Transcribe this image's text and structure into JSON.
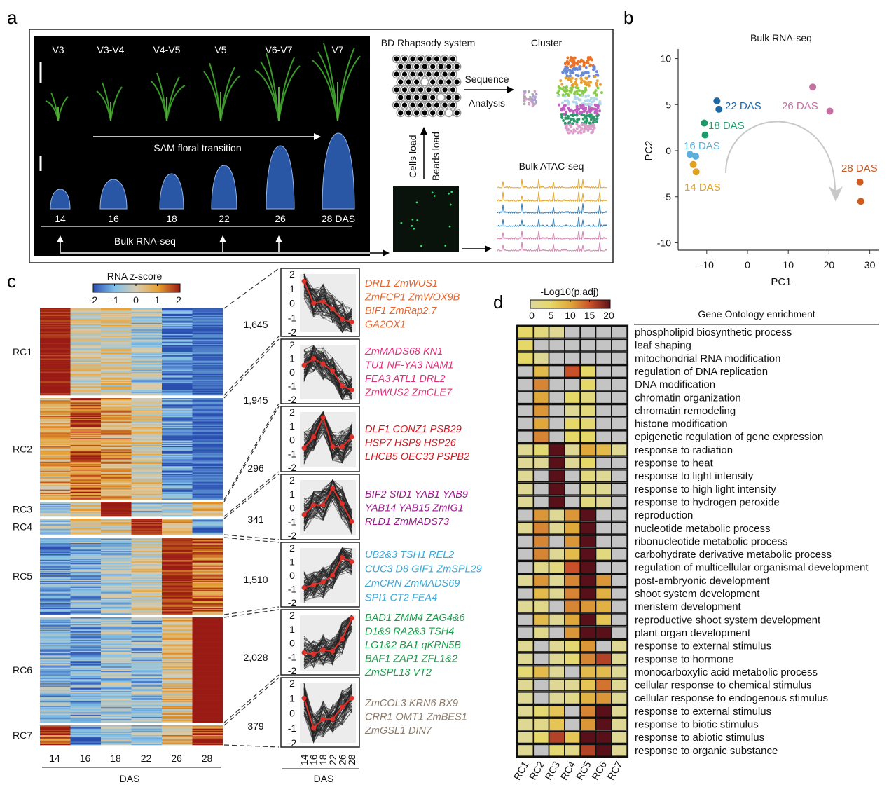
{
  "panel_labels": {
    "a": "a",
    "b": "b",
    "c": "c",
    "d": "d"
  },
  "panel_a": {
    "stages": [
      "V3",
      "V3-V4",
      "V4-V5",
      "V5",
      "V6-V7",
      "V7"
    ],
    "sam_floral_transition": "SAM floral transition",
    "days": [
      "14",
      "16",
      "18",
      "22",
      "26",
      "28  DAS"
    ],
    "bulk_rna_seq": "Bulk RNA-seq",
    "bd_rhapsody": "BD Rhapsody system",
    "cluster": "Cluster",
    "sequence": "Sequence",
    "analysis": "Analysis",
    "cells_load": "Cells load",
    "beads_load": "Beads load",
    "bulk_atac_seq": "Bulk ATAC-seq",
    "atac_track_colors": [
      "#e3a427",
      "#e3a427",
      "#2c7bb6",
      "#2c7bb6",
      "#d47fae",
      "#d47fae"
    ]
  },
  "chart_data": [
    {
      "id": "pca",
      "type": "scatter",
      "title": "Bulk RNA-seq",
      "xlabel": "PC1",
      "ylabel": "PC2",
      "xlim": [
        -17,
        32
      ],
      "ylim": [
        -11,
        11
      ],
      "xticks": [
        "-10",
        "0",
        "10",
        "20",
        "30"
      ],
      "yticks": [
        "10",
        "5",
        "0",
        "-5",
        "-10"
      ],
      "series": [
        {
          "name": "14 DAS",
          "color": "#e0a020",
          "points": [
            [
              -13.3,
              -1.5
            ],
            [
              -12.6,
              -2.3
            ]
          ]
        },
        {
          "name": "16 DAS",
          "color": "#5aaedc",
          "points": [
            [
              -14.1,
              -0.4
            ],
            [
              -12.7,
              -0.6
            ]
          ]
        },
        {
          "name": "18 DAS",
          "color": "#1f9a6a",
          "points": [
            [
              -10.6,
              3.0
            ],
            [
              -10.4,
              1.7
            ]
          ]
        },
        {
          "name": "22 DAS",
          "color": "#1f68a8",
          "points": [
            [
              -7.5,
              5.4
            ],
            [
              -7.0,
              4.5
            ]
          ]
        },
        {
          "name": "26 DAS",
          "color": "#c0739f",
          "points": [
            [
              16.0,
              6.9
            ],
            [
              20.2,
              4.3
            ]
          ]
        },
        {
          "name": "28 DAS",
          "color": "#cf5a1c",
          "points": [
            [
              27.6,
              -3.4
            ],
            [
              27.8,
              -5.5
            ]
          ]
        }
      ]
    },
    {
      "id": "rna_heatmap",
      "type": "heatmap",
      "colorbar_title": "RNA z-score",
      "colorbar_ticks": [
        "-2",
        "-1",
        "0",
        "1",
        "2"
      ],
      "colorbar_colors": [
        "#2a4fb0",
        "#80c0e8",
        "#d8ccb0",
        "#e8a030",
        "#9a1a14"
      ],
      "columns": [
        "14",
        "16",
        "18",
        "22",
        "26",
        "28"
      ],
      "xlabel": "DAS",
      "clusters": [
        {
          "name": "RC1",
          "count": "1,645",
          "genes": 1645
        },
        {
          "name": "RC2",
          "count": "1,945",
          "genes": 1945
        },
        {
          "name": "RC3",
          "count": "296",
          "genes": 296
        },
        {
          "name": "RC4",
          "count": "341",
          "genes": 341
        },
        {
          "name": "RC5",
          "count": "1,510",
          "genes": 1510
        },
        {
          "name": "RC6",
          "count": "2,028",
          "genes": 2028
        },
        {
          "name": "RC7",
          "count": "379",
          "genes": 379
        }
      ]
    },
    {
      "id": "cluster_profiles",
      "type": "line",
      "x": [
        "14",
        "16",
        "18",
        "22",
        "26",
        "28"
      ],
      "xlabel": "DAS",
      "ylim": [
        -2,
        2
      ],
      "yticks": [
        "2",
        "1",
        "0",
        "-1",
        "-2"
      ],
      "mean_line_color": "#e0302a",
      "series": [
        {
          "cluster": "RC1",
          "values": [
            1.5,
            0.0,
            0.1,
            -0.4,
            -1.1,
            -1.3
          ],
          "gene_color": "#e8642a",
          "genes": [
            "DRL1 ZmWUS1",
            "ZmFCP1 ZmWOX9B",
            "BIF1 ZmRap2.7",
            "GA2OX1"
          ]
        },
        {
          "cluster": "RC2",
          "values": [
            0.5,
            1.0,
            0.6,
            0.1,
            -1.0,
            -1.3
          ],
          "gene_color": "#e0307a",
          "genes": [
            "ZmMADS68 KN1",
            "TU1 NF-YA3 NAM1",
            "FEA3 ATL1 DRL2",
            "ZmWUS2 ZmCLE7"
          ]
        },
        {
          "cluster": "RC3",
          "values": [
            -0.6,
            0.2,
            1.6,
            -0.5,
            -0.5,
            0.2
          ],
          "gene_color": "#d8141e",
          "genes": [
            "DLF1 CONZ1 PSB29",
            "HSP7 HSP9  HSP26",
            "LHCB5 OEC33 PSPB2"
          ]
        },
        {
          "cluster": "RC4",
          "values": [
            -0.5,
            0.2,
            0.2,
            1.4,
            0.3,
            -1.0
          ],
          "gene_color": "#9a1a8a",
          "genes": [
            "BIF2 SID1 YAB1 YAB9",
            "YAB14 YAB15  ZmIG1",
            "RLD1 ZmMADS73"
          ]
        },
        {
          "cluster": "RC5",
          "values": [
            -0.9,
            -0.7,
            -0.5,
            0.0,
            1.3,
            1.0
          ],
          "gene_color": "#3aa8d8",
          "genes": [
            "UB2&3 TSH1 REL2",
            "CUC3 D8 GIF1 ZmSPL29",
            "ZmCRN ZmMADS69",
            "SPI1 CT2 FEA4"
          ]
        },
        {
          "cluster": "RC6",
          "values": [
            -0.7,
            -0.8,
            -0.5,
            -0.6,
            0.3,
            1.8
          ],
          "gene_color": "#1a9a4a",
          "genes": [
            "BAD1 ZMM4 ZAG4&6",
            "D1&9 RA2&3 TSH4",
            "LG1&2 BA1 qKRN5B",
            "BAF1 ZAP1 ZFL1&2",
            "ZmSPL13 VT2"
          ]
        },
        {
          "cluster": "RC7",
          "values": [
            1.0,
            -1.0,
            -0.4,
            -0.4,
            0.4,
            1.0
          ],
          "gene_color": "#8a7a6a",
          "genes": [
            "ZmCOL3 KRN6 BX9",
            "CRR1 OMT1 ZmBES1",
            "ZmGSL1 DIN7"
          ]
        }
      ]
    },
    {
      "id": "go_heatmap",
      "type": "heatmap",
      "title": "Gene Ontology enrichment",
      "colorbar_title": "-Log10(p.adj)",
      "colorbar_ticks": [
        "0",
        "5",
        "10",
        "15",
        "20"
      ],
      "columns": [
        "RC1",
        "RC2",
        "RC3",
        "RC4",
        "RC5",
        "RC6",
        "RC7"
      ],
      "na_color": "#c4c4c4",
      "blocks": [
        {
          "terms": [
            "phospholipid biosynthetic process",
            "leaf shaping",
            "mitochondrial RNA modification"
          ],
          "values": [
            [
              5,
              3,
              1,
              0,
              0,
              0,
              0
            ],
            [
              5,
              0,
              0,
              0,
              0,
              0,
              0
            ],
            [
              5,
              1,
              0,
              0,
              0,
              0,
              0
            ]
          ]
        },
        {
          "terms": [
            "regulation of DNA replication",
            "DNA modification",
            "chromatin organization",
            "chromatin remodeling",
            "histone modification",
            "epigenetic regulation of gene expression"
          ],
          "values": [
            [
              0,
              8,
              0,
              15,
              5,
              0,
              0
            ],
            [
              0,
              12,
              0,
              0,
              5,
              0,
              0
            ],
            [
              0,
              10,
              0,
              5,
              3,
              0,
              0
            ],
            [
              0,
              11,
              0,
              1,
              3,
              0,
              0
            ],
            [
              0,
              10,
              0,
              5,
              4,
              0,
              0
            ],
            [
              0,
              12,
              0,
              5,
              5,
              0,
              0
            ]
          ]
        },
        {
          "terms": [
            "response to radiation",
            "response to heat",
            "response to light intensity",
            "response to high light intensity",
            "response to hydrogen peroxide"
          ],
          "values": [
            [
              1,
              4,
              20,
              1,
              10,
              8,
              1
            ],
            [
              1,
              1,
              20,
              1,
              5,
              0,
              0
            ],
            [
              1,
              0,
              20,
              0,
              3,
              1,
              0
            ],
            [
              1,
              0,
              20,
              0,
              2,
              1,
              0
            ],
            [
              1,
              0,
              20,
              0,
              3,
              1,
              0
            ]
          ]
        },
        {
          "terms": [
            "reproduction",
            "nucleotide metabolic process",
            "ribonucleotide metabolic process",
            "carbohydrate derivative metabolic process",
            "regulation of multicellular organismal development"
          ],
          "values": [
            [
              0,
              11,
              1,
              11,
              20,
              0,
              0
            ],
            [
              1,
              12,
              1,
              10,
              20,
              0,
              0
            ],
            [
              0,
              12,
              0,
              11,
              20,
              0,
              0
            ],
            [
              0,
              12,
              1,
              8,
              20,
              3,
              0
            ],
            [
              0,
              2,
              3,
              15,
              20,
              0,
              0
            ]
          ]
        },
        {
          "terms": [
            "post-embryonic development",
            "shoot system development",
            "meristem development",
            "reproductive shoot system development",
            "plant organ development"
          ],
          "values": [
            [
              1,
              11,
              1,
              12,
              20,
              11,
              0
            ],
            [
              0,
              8,
              1,
              12,
              20,
              9,
              0
            ],
            [
              1,
              2,
              0,
              12,
              11,
              9,
              0
            ],
            [
              0,
              8,
              1,
              10,
              20,
              7,
              0
            ],
            [
              0,
              2,
              0,
              11,
              20,
              20,
              0
            ]
          ]
        },
        {
          "terms": [
            "response to external stimulus",
            "response to hormone",
            "monocarboxylic acid metabolic process",
            "cellular response to chemical stimulus",
            "cellular response to endogenous stimulus"
          ],
          "values": [
            [
              1,
              0,
              1,
              4,
              11,
              0,
              1
            ],
            [
              1,
              0,
              1,
              4,
              12,
              16,
              1
            ],
            [
              4,
              8,
              1,
              0,
              8,
              8,
              1
            ],
            [
              1,
              0,
              1,
              1,
              7,
              13,
              1
            ],
            [
              1,
              0,
              1,
              2,
              9,
              11,
              1
            ]
          ]
        },
        {
          "terms": [
            "response to external stimulus",
            "response to biotic stimulus",
            "response to abiotic stimulus",
            "response to organic substance"
          ],
          "values": [
            [
              1,
              4,
              7,
              0,
              12,
              20,
              1
            ],
            [
              1,
              2,
              7,
              0,
              11,
              20,
              1
            ],
            [
              1,
              5,
              16,
              7,
              20,
              20,
              1
            ],
            [
              1,
              0,
              4,
              2,
              16,
              20,
              1
            ]
          ]
        }
      ]
    }
  ]
}
